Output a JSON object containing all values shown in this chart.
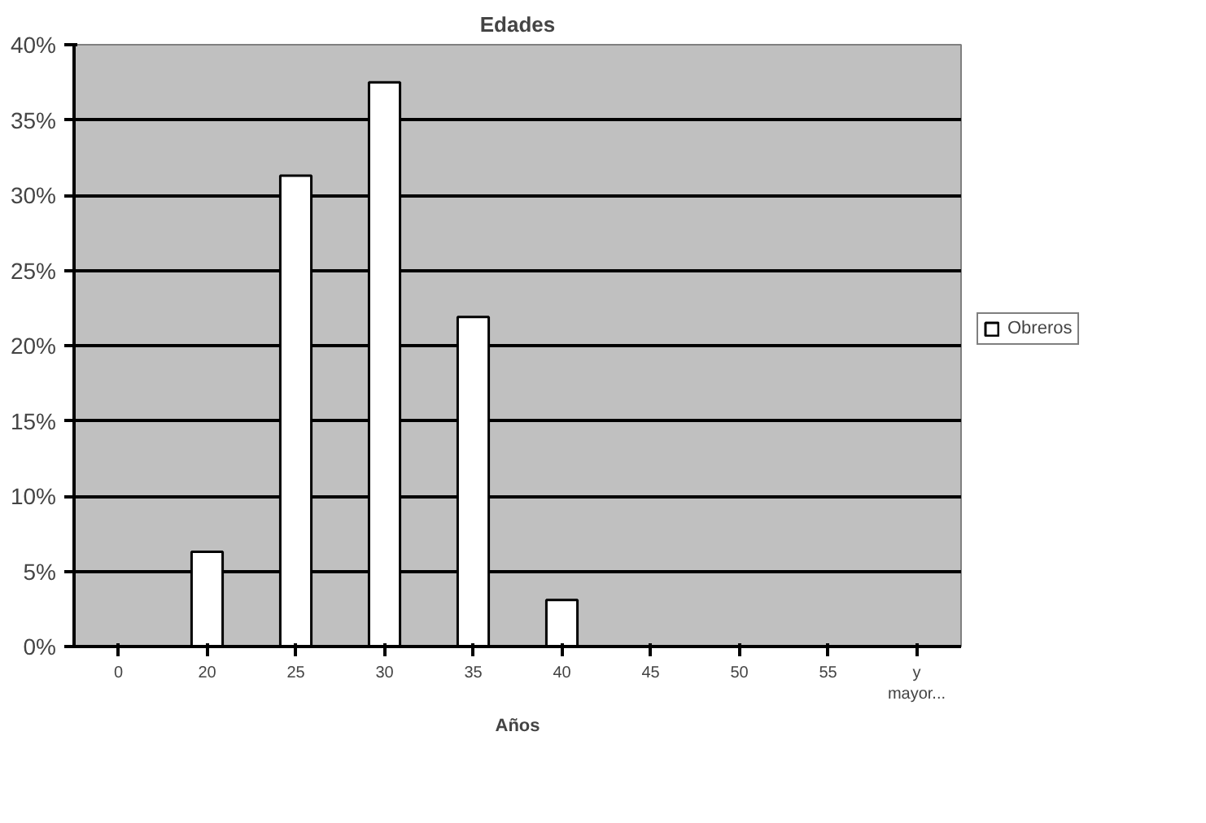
{
  "chart_data": {
    "type": "bar",
    "title": "Edades",
    "xlabel": "Años",
    "categories": [
      "0",
      "20",
      "25",
      "30",
      "35",
      "40",
      "45",
      "50",
      "55",
      "y mayor..."
    ],
    "series": [
      {
        "name": "Obreros",
        "color": "#ffffff",
        "values": [
          0,
          6.3,
          31.3,
          37.5,
          21.9,
          3.1,
          0,
          0,
          0,
          0
        ]
      }
    ],
    "ylim": [
      0,
      40
    ],
    "yticks": [
      {
        "value": 0,
        "label": "0%"
      },
      {
        "value": 5,
        "label": "5%"
      },
      {
        "value": 10,
        "label": "10%"
      },
      {
        "value": 15,
        "label": "15%"
      },
      {
        "value": 20,
        "label": "20%"
      },
      {
        "value": 25,
        "label": "25%"
      },
      {
        "value": 30,
        "label": "30%"
      },
      {
        "value": 35,
        "label": "35%"
      },
      {
        "value": 40,
        "label": "40%"
      }
    ],
    "grid": "y",
    "legend": "right"
  }
}
